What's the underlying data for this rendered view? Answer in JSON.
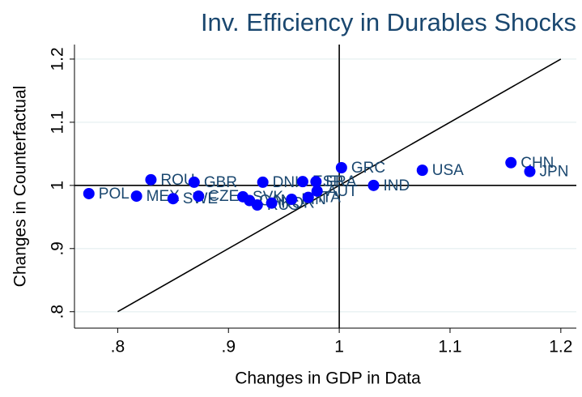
{
  "chart_data": {
    "type": "scatter",
    "title": "Inv. Efficiency in Durables Shocks",
    "xlabel": "Changes in GDP in Data",
    "ylabel": "Changes in Counterfactual",
    "labels": [
      "POL",
      "MEX",
      "ROU",
      "SWE",
      "GBR",
      "CZE",
      "SVK",
      "CAN",
      "RUS",
      "DNK",
      "KOR",
      "FIN",
      "ESP",
      "ITA",
      "FRA",
      "AUT",
      "GRC",
      "IND",
      "USA",
      "CHN",
      "JPN"
    ],
    "x": [
      0.774,
      0.817,
      0.83,
      0.85,
      0.869,
      0.873,
      0.913,
      0.919,
      0.926,
      0.931,
      0.939,
      0.957,
      0.967,
      0.972,
      0.979,
      0.98,
      1.002,
      1.031,
      1.075,
      1.155,
      1.172
    ],
    "values": [
      0.987,
      0.983,
      1.009,
      0.979,
      1.005,
      0.983,
      0.982,
      0.976,
      0.969,
      1.005,
      0.972,
      0.978,
      1.006,
      0.981,
      1.006,
      0.991,
      1.028,
      1.0,
      1.024,
      1.036,
      1.022
    ],
    "color": "#0000ff",
    "label_color": "#1a476f",
    "refline_x": 1,
    "refline_y": 1,
    "diagonal": [
      0.8,
      1.2
    ],
    "xlim": [
      0.761,
      1.214
    ],
    "ylim": [
      0.774,
      1.223
    ],
    "xticks": [
      {
        "value": 0.8,
        "label": ".8"
      },
      {
        "value": 0.9,
        "label": ".9"
      },
      1,
      1.1,
      1.2
    ],
    "yticks": [
      {
        "value": 0.8,
        "label": ".8"
      },
      {
        "value": 0.9,
        "label": ".9"
      },
      1,
      1.1,
      1.2
    ],
    "grid": true
  }
}
